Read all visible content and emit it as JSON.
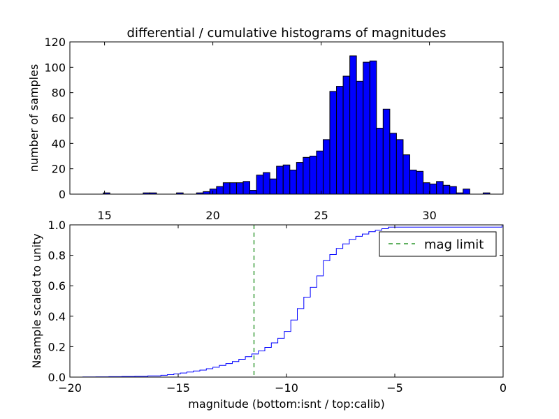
{
  "chart_data": [
    {
      "type": "bar",
      "title": "differential / cumulative histograms of magnitudes",
      "xlabel": "",
      "ylabel": "number of samples",
      "xlim": [
        13.4,
        33.4
      ],
      "ylim": [
        0,
        120
      ],
      "xticks": [
        15,
        20,
        25,
        30
      ],
      "yticks": [
        0,
        20,
        40,
        60,
        80,
        100,
        120
      ],
      "tick_position": "x ticks shown below the axes",
      "bin_start": 13.4,
      "bin_width": 0.3077,
      "bar_color": "#0000ff",
      "values": [
        0,
        0,
        0,
        0,
        0,
        1,
        0,
        0,
        0,
        0,
        0,
        1,
        1,
        0,
        0,
        0,
        1,
        0,
        0,
        1,
        2,
        4,
        6,
        9,
        9,
        9,
        10,
        3,
        15,
        17,
        12,
        22,
        23,
        19,
        25,
        29,
        30,
        34,
        43,
        81,
        85,
        93,
        109,
        89,
        104,
        105,
        52,
        67,
        48,
        43,
        31,
        19,
        18,
        9,
        8,
        10,
        7,
        6,
        1,
        4,
        0,
        0,
        1,
        0,
        0
      ]
    },
    {
      "type": "line",
      "drawstyle": "steps",
      "xlabel": "magnitude (bottom:isnt / top:calib)",
      "ylabel": "Nsample scaled to unity",
      "xlim": [
        -20,
        0
      ],
      "ylim": [
        0,
        1.0
      ],
      "xticks": [
        -20,
        -15,
        -10,
        -5,
        0
      ],
      "xticklabels": [
        "−20",
        "−15",
        "−10",
        "−5",
        "0"
      ],
      "yticks": [
        0.0,
        0.2,
        0.4,
        0.6,
        0.8,
        1.0
      ],
      "yticklabels": [
        "0.0",
        "0.2",
        "0.4",
        "0.6",
        "0.8",
        "1.0"
      ],
      "line_color": "#0000ff",
      "x": [
        -20.0,
        -19.4,
        -18.8,
        -18.2,
        -17.6,
        -17.0,
        -16.4,
        -15.8,
        -15.5,
        -15.2,
        -14.9,
        -14.6,
        -14.3,
        -14.0,
        -13.7,
        -13.4,
        -13.1,
        -12.8,
        -12.5,
        -12.2,
        -11.9,
        -11.6,
        -11.3,
        -11.0,
        -10.7,
        -10.4,
        -10.1,
        -9.8,
        -9.5,
        -9.2,
        -8.9,
        -8.6,
        -8.3,
        -8.0,
        -7.7,
        -7.4,
        -7.1,
        -6.8,
        -6.5,
        -6.2,
        -5.9,
        -5.6,
        -5.3,
        -0.05
      ],
      "y": [
        0.0,
        0.001,
        0.002,
        0.003,
        0.004,
        0.005,
        0.008,
        0.012,
        0.016,
        0.021,
        0.027,
        0.033,
        0.04,
        0.046,
        0.055,
        0.065,
        0.077,
        0.089,
        0.102,
        0.117,
        0.134,
        0.152,
        0.172,
        0.195,
        0.225,
        0.255,
        0.3,
        0.375,
        0.45,
        0.525,
        0.59,
        0.665,
        0.765,
        0.805,
        0.845,
        0.875,
        0.905,
        0.925,
        0.94,
        0.955,
        0.965,
        0.975,
        0.985,
        1.0
      ],
      "reference_line": {
        "label": "mag limit",
        "x": -11.5,
        "style": "dashed",
        "color": "#008000"
      },
      "legend": {
        "location": "upper-right",
        "entries": [
          "mag limit"
        ]
      }
    }
  ]
}
